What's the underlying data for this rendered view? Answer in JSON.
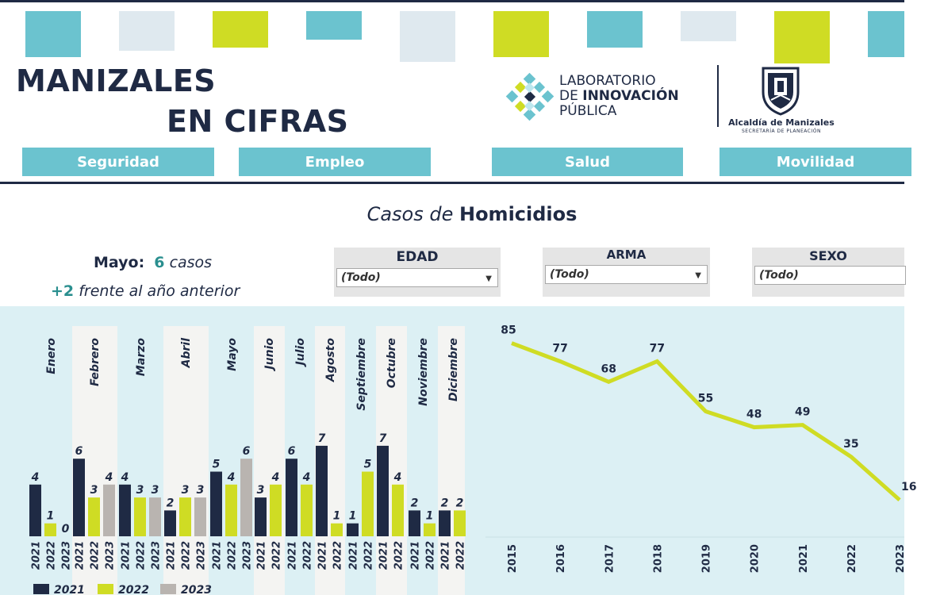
{
  "header": {
    "title_line1": "MANIZALES",
    "title_line2": "EN CIFRAS",
    "lab_line1": "LABORATORIO",
    "lab_line2_prefix": "DE ",
    "lab_line2_bold": "INNOVACIÓN",
    "lab_line3": "PÚBLICA",
    "alcaldia_name": "Alcaldía de Manizales",
    "alcaldia_sub": "SECRETARÍA DE PLANEACIÓN",
    "icons": {
      "lab_logo": "innovation-lab-logo-icon",
      "shield": "coat-of-arms-icon"
    },
    "colors": {
      "navy": "#1f2a44",
      "teal": "#6bc3cf",
      "lime": "#cfdc24",
      "pale": "#dfe9ef"
    }
  },
  "nav": [
    {
      "label": "Seguridad"
    },
    {
      "label": "Empleo"
    },
    {
      "label": "Salud"
    },
    {
      "label": "Movilidad"
    }
  ],
  "section": {
    "title_italic": "Casos de ",
    "title_bold": "Homicidios"
  },
  "summary": {
    "month_label": "Mayo:",
    "month_value": "6",
    "month_unit": "casos",
    "diff_value": "+2",
    "diff_text": "frente al año anterior"
  },
  "filters": [
    {
      "label": "EDAD",
      "value": "(Todo)"
    },
    {
      "label": "ARMA",
      "value": "(Todo)"
    },
    {
      "label": "SEXO",
      "value": "(Todo)"
    }
  ],
  "chart_data": [
    {
      "type": "bar",
      "categories": [
        "Enero",
        "Febrero",
        "Marzo",
        "Abril",
        "Mayo",
        "Junio",
        "Julio",
        "Agosto",
        "Septiembre",
        "Octubre",
        "Noviembre",
        "Diciembre"
      ],
      "series": [
        {
          "name": "2021",
          "color": "#1f2a44",
          "values": [
            4,
            6,
            4,
            2,
            5,
            3,
            6,
            7,
            1,
            7,
            2,
            2
          ]
        },
        {
          "name": "2022",
          "color": "#cfdc24",
          "values": [
            1,
            3,
            3,
            3,
            4,
            4,
            4,
            1,
            5,
            4,
            1,
            2
          ]
        },
        {
          "name": "2023",
          "color": "#b9b4b0",
          "values": [
            0,
            4,
            3,
            3,
            6,
            null,
            null,
            null,
            null,
            null,
            null,
            null
          ]
        }
      ],
      "year_ticks": [
        [
          "2021",
          "2022",
          "2023"
        ],
        [
          "2021",
          "2022",
          "2023"
        ],
        [
          "2021",
          "2022",
          "2023"
        ],
        [
          "2021",
          "2022",
          "2023"
        ],
        [
          "2021",
          "2022",
          "2023"
        ],
        [
          "2021",
          "2022"
        ],
        [
          "2021",
          "2022"
        ],
        [
          "2021",
          "2022"
        ],
        [
          "2021",
          "2022"
        ],
        [
          "2021",
          "2022"
        ],
        [
          "2021",
          "2022"
        ],
        [
          "2021",
          "2022"
        ]
      ],
      "legend": [
        "2021",
        "2022",
        "2023"
      ],
      "legend_position": "bottom-left",
      "ylim": [
        0,
        7.5
      ]
    },
    {
      "type": "line",
      "x": [
        "2015",
        "2016",
        "2017",
        "2018",
        "2019",
        "2020",
        "2021",
        "2022",
        "2023"
      ],
      "y": [
        85,
        77,
        68,
        77,
        55,
        48,
        49,
        35,
        16
      ],
      "color": "#cfdc24",
      "ylim": [
        0,
        88
      ]
    }
  ]
}
